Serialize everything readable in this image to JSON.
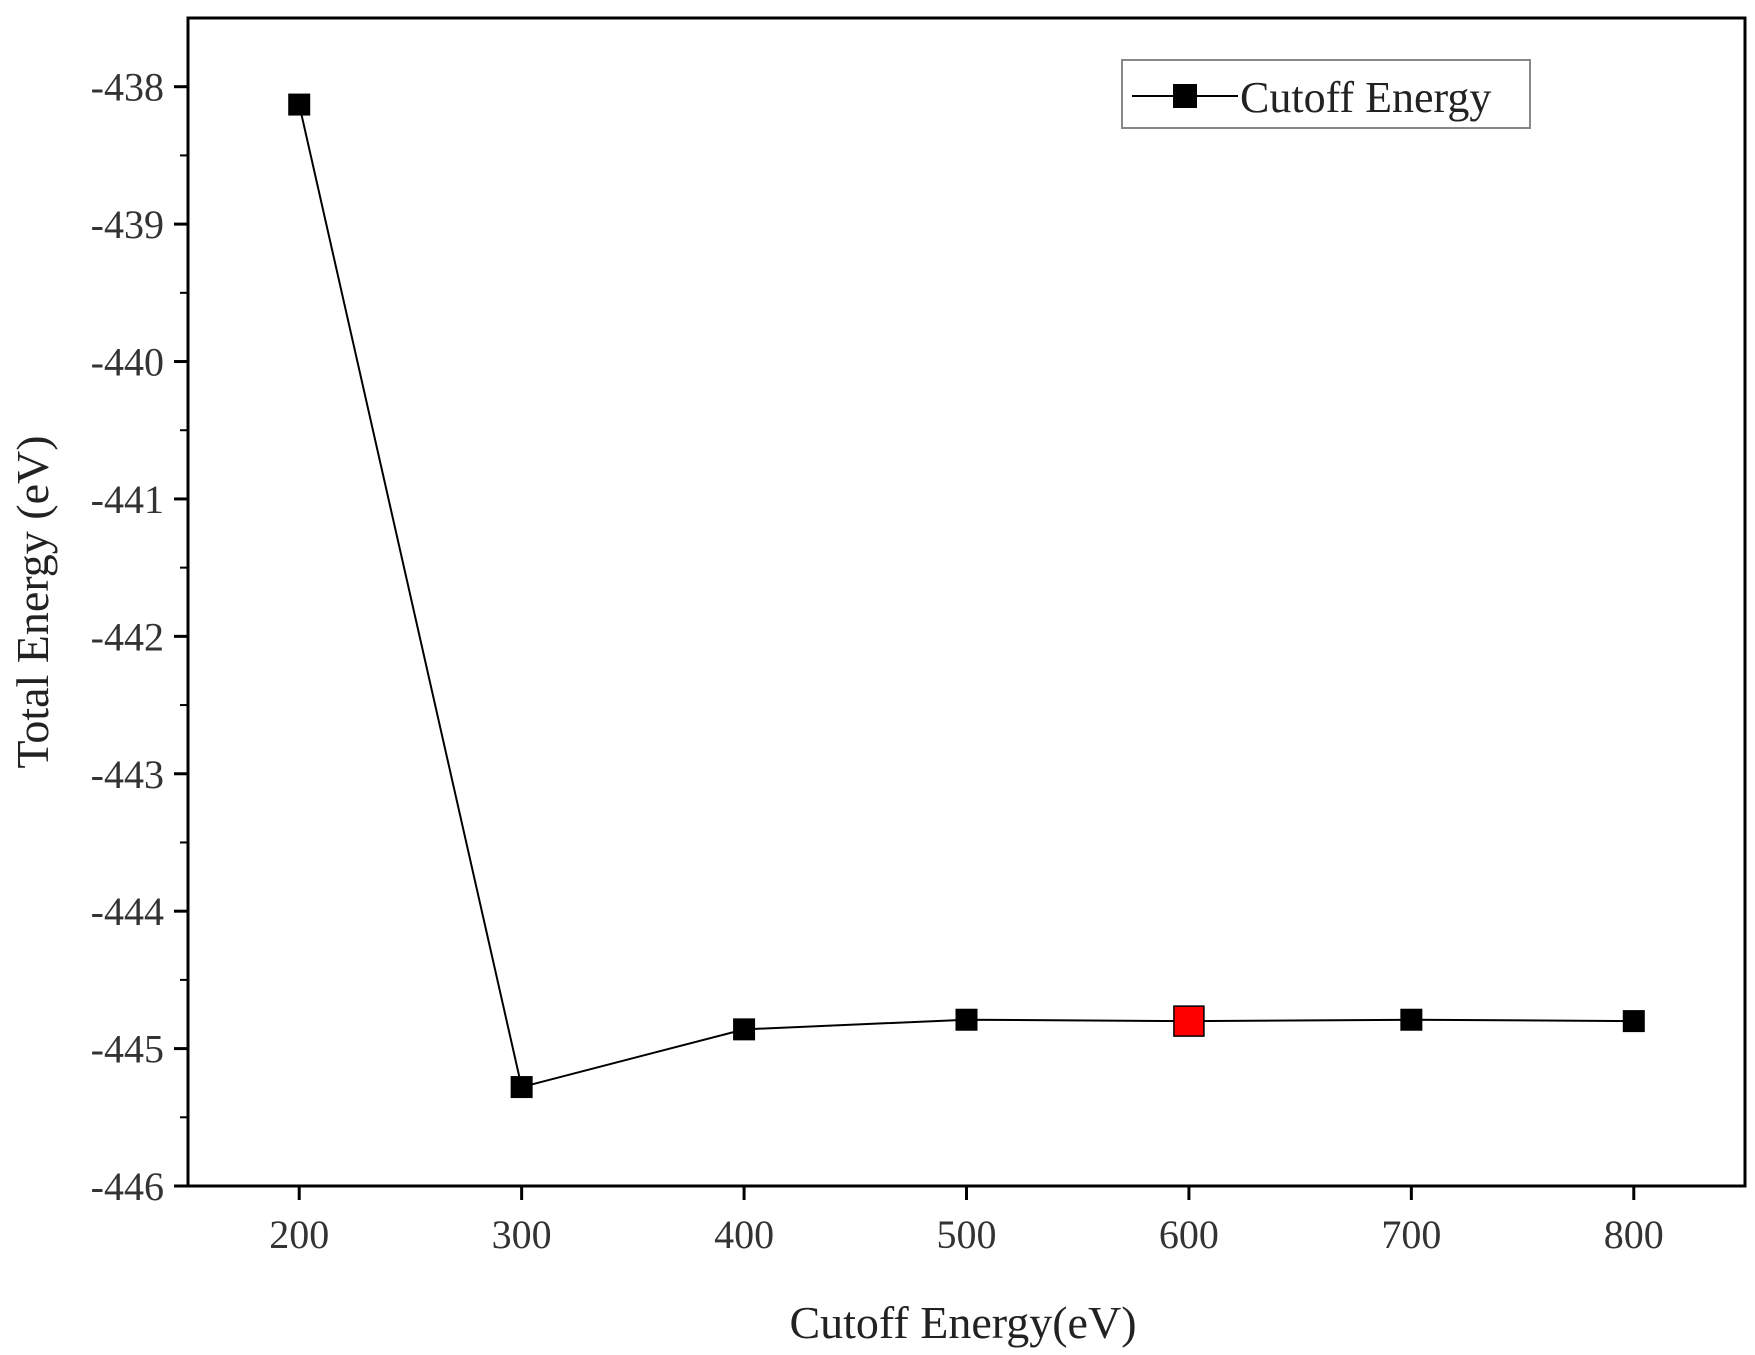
{
  "chart_data": {
    "type": "line",
    "title": "",
    "xlabel": "Cutoff Energy(eV)",
    "ylabel": "Total Energy (eV)",
    "xlim": [
      150,
      850
    ],
    "ylim": [
      -446,
      -437.5
    ],
    "x_ticks": [
      200,
      300,
      400,
      500,
      600,
      700,
      800
    ],
    "x_tick_labels": [
      "200",
      "300",
      "400",
      "500",
      "600",
      "700",
      "800"
    ],
    "y_ticks": [
      -446,
      -445,
      -444,
      -443,
      -442,
      -441,
      -440,
      -439,
      -438
    ],
    "y_tick_labels": [
      "-446",
      "-445",
      "-444",
      "-443",
      "-442",
      "-441",
      "-440",
      "-439",
      "-438"
    ],
    "grid": false,
    "legend_position": "top-right",
    "series": [
      {
        "name": "Cutoff Energy",
        "color": "#000000",
        "marker": "square",
        "x": [
          200,
          300,
          400,
          500,
          600,
          700,
          800
        ],
        "y": [
          -438.13,
          -445.28,
          -444.86,
          -444.79,
          -444.8,
          -444.79,
          -444.8
        ],
        "highlight_index": 4,
        "highlight_color": "#ff0000"
      }
    ]
  }
}
